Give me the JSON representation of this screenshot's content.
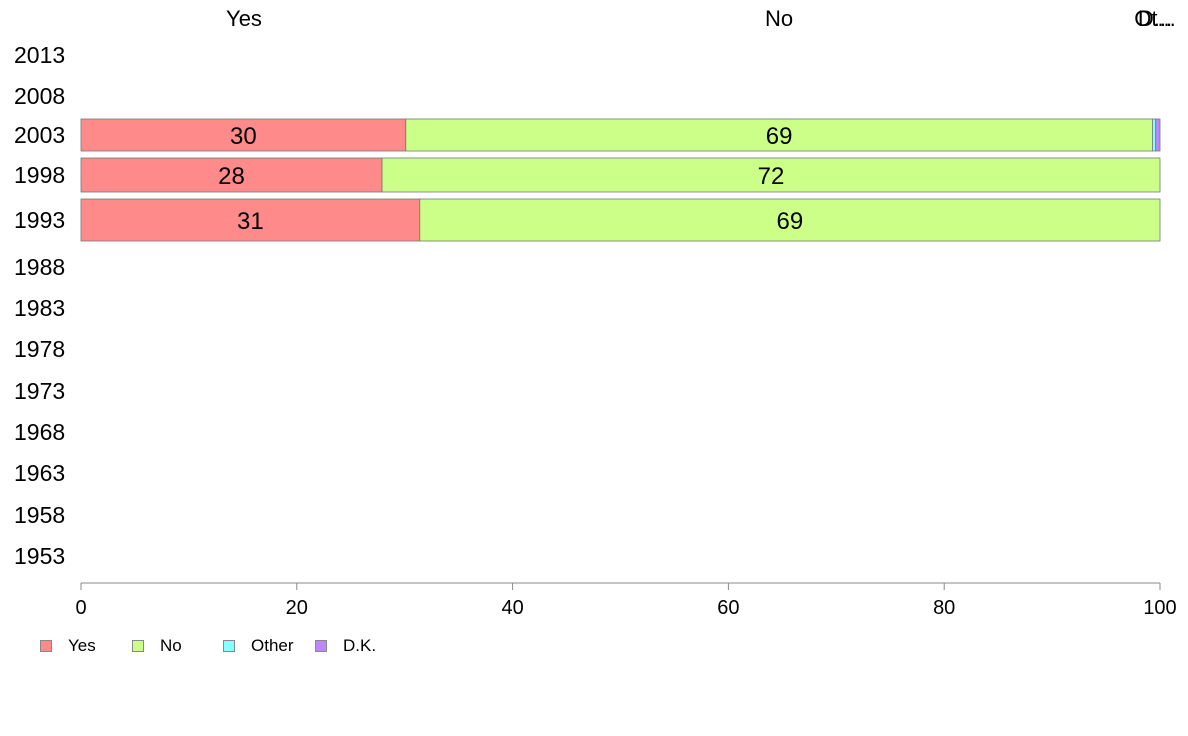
{
  "chart_data": {
    "type": "bar",
    "orientation": "horizontal",
    "stacked": true,
    "categories": [
      "2013",
      "2008",
      "2003",
      "1998",
      "1993",
      "1988",
      "1983",
      "1978",
      "1973",
      "1968",
      "1963",
      "1958",
      "1953"
    ],
    "series": [
      {
        "name": "Yes",
        "color": "#ff8a8a",
        "values": [
          null,
          null,
          30.1,
          27.9,
          31.4,
          null,
          null,
          null,
          null,
          null,
          null,
          null,
          null
        ]
      },
      {
        "name": "No",
        "color": "#ccff88",
        "values": [
          null,
          null,
          69.2,
          72.1,
          68.6,
          null,
          null,
          null,
          null,
          null,
          null,
          null,
          null
        ]
      },
      {
        "name": "Other",
        "color": "#88ffff",
        "values": [
          null,
          null,
          0.3,
          0,
          0,
          null,
          null,
          null,
          null,
          null,
          null,
          null,
          null
        ]
      },
      {
        "name": "D.K.",
        "color": "#bb88ff",
        "values": [
          null,
          null,
          0.4,
          0,
          0,
          null,
          null,
          null,
          null,
          null,
          null,
          null,
          null
        ]
      }
    ],
    "data_labels": {
      "2003": [
        "30",
        "69"
      ],
      "1998": [
        "28",
        "72"
      ],
      "1993": [
        "31",
        "69"
      ]
    },
    "column_labels": [
      "Yes",
      "No",
      "Ot...",
      "D..."
    ],
    "xticks": [
      "0",
      "20",
      "40",
      "60",
      "80",
      "100"
    ],
    "xlim": [
      0,
      100
    ],
    "grid": false,
    "legend_position": "bottom-left"
  },
  "legend": [
    {
      "label": "Yes",
      "color": "#ff8a8a"
    },
    {
      "label": "No",
      "color": "#ccff88"
    },
    {
      "label": "Other",
      "color": "#88ffff"
    },
    {
      "label": "D.K.",
      "color": "#bb88ff"
    }
  ]
}
